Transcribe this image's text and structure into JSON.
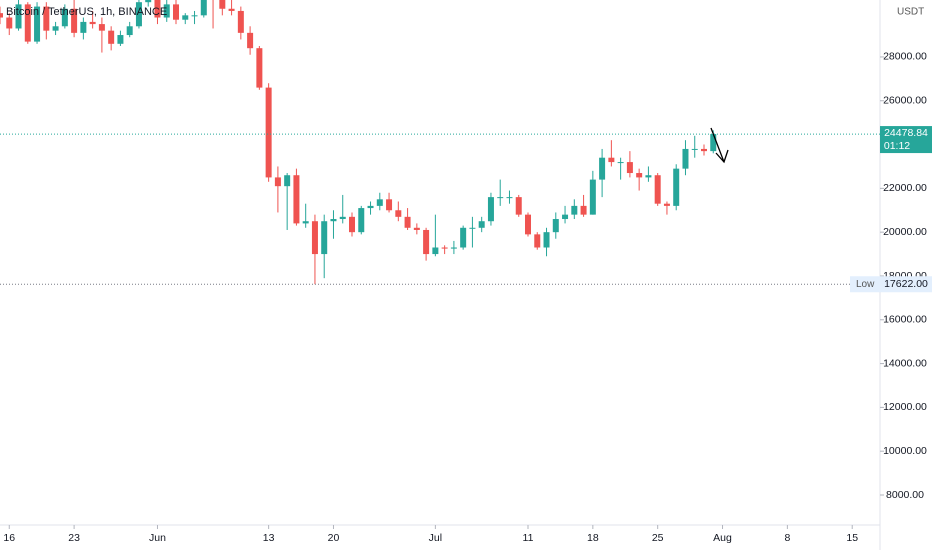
{
  "chart_data": {
    "type": "candlestick",
    "title": "Bitcoin / TetherUS, 1h, BINANCE",
    "y_unit": "USDT",
    "up_color": "#26a69a",
    "down_color": "#ef5350",
    "x": [
      "May 15",
      "May 16",
      "May 17",
      "May 18",
      "May 19",
      "May 20",
      "May 21",
      "May 22",
      "May 23",
      "May 24",
      "May 25",
      "May 26",
      "May 27",
      "May 28",
      "May 29",
      "May 30",
      "May 31",
      "Jun 1",
      "Jun 2",
      "Jun 3",
      "Jun 4",
      "Jun 5",
      "Jun 6",
      "Jun 7",
      "Jun 8",
      "Jun 9",
      "Jun 10",
      "Jun 11",
      "Jun 12",
      "Jun 13",
      "Jun 14",
      "Jun 15",
      "Jun 16",
      "Jun 17",
      "Jun 18",
      "Jun 19",
      "Jun 20",
      "Jun 21",
      "Jun 22",
      "Jun 23",
      "Jun 24",
      "Jun 25",
      "Jun 26",
      "Jun 27",
      "Jun 28",
      "Jun 29",
      "Jun 30",
      "Jul 1",
      "Jul 2",
      "Jul 3",
      "Jul 4",
      "Jul 5",
      "Jul 6",
      "Jul 7",
      "Jul 8",
      "Jul 9",
      "Jul 10",
      "Jul 11",
      "Jul 12",
      "Jul 13",
      "Jul 14",
      "Jul 15",
      "Jul 16",
      "Jul 17",
      "Jul 18",
      "Jul 19",
      "Jul 20",
      "Jul 21",
      "Jul 22",
      "Jul 23",
      "Jul 24",
      "Jul 25",
      "Jul 26",
      "Jul 27",
      "Jul 28",
      "Jul 29",
      "Jul 30",
      "Jul 31"
    ],
    "open": [
      30000,
      29800,
      29300,
      30400,
      28700,
      30300,
      29200,
      29400,
      30200,
      29100,
      29600,
      29500,
      29200,
      28600,
      29000,
      29400,
      30500,
      31600,
      29800,
      30400,
      29700,
      29900,
      29900,
      31300,
      31100,
      30200,
      30100,
      29100,
      28400,
      26600,
      22500,
      22100,
      22600,
      20400,
      20500,
      19000,
      20500,
      20600,
      20700,
      20000,
      21100,
      21200,
      21500,
      21000,
      20700,
      20200,
      20100,
      19000,
      19300,
      19250,
      19300,
      20200,
      20200,
      20500,
      21600,
      21600,
      21600,
      20800,
      19900,
      19300,
      20000,
      20600,
      20800,
      21200,
      20800,
      22400,
      23400,
      23200,
      23200,
      22700,
      22500,
      22600,
      21300,
      21200,
      22900,
      23800,
      23800,
      23700
    ],
    "high": [
      30300,
      30000,
      30600,
      30500,
      30500,
      30500,
      29600,
      30400,
      30600,
      29800,
      30100,
      29800,
      29400,
      29200,
      29600,
      30800,
      32000,
      31900,
      30600,
      30600,
      30000,
      30100,
      31700,
      31500,
      31300,
      30600,
      30300,
      29400,
      28500,
      26800,
      23000,
      22700,
      22900,
      21300,
      20800,
      20800,
      21000,
      21700,
      20900,
      21200,
      21400,
      21800,
      21800,
      21400,
      21100,
      20400,
      20200,
      20800,
      19400,
      19600,
      20300,
      20700,
      20700,
      21800,
      22400,
      21900,
      21700,
      20900,
      20000,
      20200,
      20900,
      21200,
      21500,
      21700,
      22800,
      23800,
      24200,
      23400,
      23700,
      22900,
      23000,
      22700,
      21400,
      23100,
      24200,
      24400,
      24000,
      24650
    ],
    "low": [
      29500,
      29000,
      29200,
      28600,
      28600,
      28800,
      29000,
      29300,
      28900,
      28800,
      29300,
      28200,
      28300,
      28500,
      28900,
      29300,
      30300,
      29500,
      29600,
      29500,
      29500,
      29500,
      29800,
      29300,
      29900,
      29900,
      28800,
      28100,
      26500,
      22300,
      20900,
      20100,
      20300,
      20200,
      17622,
      17900,
      19700,
      20400,
      19800,
      19900,
      20800,
      21000,
      20900,
      20500,
      20100,
      19900,
      18700,
      18900,
      19000,
      19000,
      19200,
      19300,
      20000,
      20300,
      21200,
      21300,
      20700,
      19800,
      19200,
      18900,
      19700,
      20400,
      20600,
      20700,
      20800,
      21600,
      23000,
      22400,
      22500,
      21900,
      22300,
      21200,
      20800,
      21000,
      22600,
      23400,
      23500,
      23600
    ],
    "close": [
      29800,
      29300,
      30400,
      28700,
      30300,
      29200,
      29400,
      30200,
      29100,
      29600,
      29500,
      29200,
      28600,
      29000,
      29400,
      30500,
      31600,
      29800,
      30400,
      29700,
      29900,
      29900,
      31300,
      31100,
      30200,
      30100,
      29100,
      28400,
      26600,
      22500,
      22100,
      22600,
      20400,
      20500,
      19000,
      20500,
      20600,
      20700,
      20000,
      21100,
      21200,
      21500,
      21000,
      20700,
      20200,
      20100,
      19000,
      19300,
      19250,
      19300,
      20200,
      20200,
      20500,
      21600,
      21600,
      21600,
      20800,
      19900,
      19300,
      20000,
      20600,
      20800,
      21200,
      20800,
      22400,
      23400,
      23200,
      23200,
      22700,
      22500,
      22600,
      21300,
      21200,
      22900,
      23800,
      23800,
      23700,
      24478.84
    ],
    "xlim": [
      "May 15",
      "Aug 18"
    ],
    "xticks": [
      {
        "value": "May 16",
        "label": "16"
      },
      {
        "value": "May 23",
        "label": "23"
      },
      {
        "value": "Jun 1",
        "label": "Jun"
      },
      {
        "value": "Jun 13",
        "label": "13"
      },
      {
        "value": "Jun 20",
        "label": "20"
      },
      {
        "value": "Jul 1",
        "label": "Jul"
      },
      {
        "value": "Jul 11",
        "label": "11"
      },
      {
        "value": "Jul 18",
        "label": "18"
      },
      {
        "value": "Jul 25",
        "label": "25"
      },
      {
        "value": "Aug 1",
        "label": "Aug"
      },
      {
        "value": "Aug 8",
        "label": "8"
      },
      {
        "value": "Aug 15",
        "label": "15"
      }
    ],
    "ylim": [
      6630,
      30600
    ],
    "yticks": [
      {
        "value": 8000,
        "label": "8000.00"
      },
      {
        "value": 10000,
        "label": "10000.00"
      },
      {
        "value": 12000,
        "label": "12000.00"
      },
      {
        "value": 14000,
        "label": "14000.00"
      },
      {
        "value": 16000,
        "label": "16000.00"
      },
      {
        "value": 18000,
        "label": "18000.00"
      },
      {
        "value": 20000,
        "label": "20000.00"
      },
      {
        "value": 22000,
        "label": "22000.00"
      },
      {
        "value": 24000,
        "label": "24000.00"
      },
      {
        "value": 26000,
        "label": "26000.00"
      },
      {
        "value": 28000,
        "label": "28000.00"
      }
    ],
    "price_line": {
      "value": 24478.84,
      "timer": "01:12",
      "color": "#26a69a"
    },
    "low_line": {
      "label": "Low",
      "value": 17622,
      "value_label": "17622.00"
    }
  }
}
